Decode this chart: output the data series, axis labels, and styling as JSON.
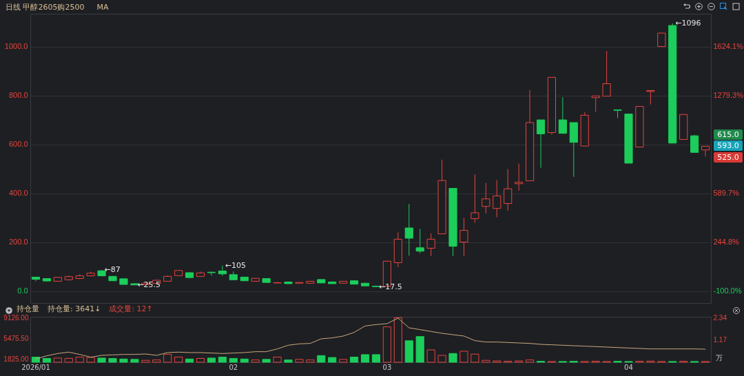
{
  "chart_data": [
    {
      "type": "candlestick",
      "title": "日线 甲醇2605购2500",
      "subtitle": "MA",
      "categories": [
        null,
        null,
        null,
        null,
        null,
        null,
        null,
        null,
        null,
        null,
        null,
        null,
        null,
        null,
        null,
        null,
        null,
        null,
        null,
        null,
        null,
        null,
        null,
        null,
        null,
        null,
        null,
        null,
        null,
        null,
        null,
        null,
        null,
        null,
        null,
        null,
        null,
        null,
        null,
        null,
        null,
        null,
        null,
        null,
        null,
        null,
        null,
        null,
        null,
        null,
        null,
        null,
        null,
        null,
        null,
        null,
        null,
        null,
        null,
        null,
        null,
        null
      ],
      "ohlc": [
        [
          58,
          59,
          41,
          49
        ],
        [
          52,
          53,
          40,
          42
        ],
        [
          41,
          58,
          40,
          57
        ],
        [
          47,
          64,
          45,
          60
        ],
        [
          52,
          70,
          50,
          63
        ],
        [
          63,
          80,
          61,
          74
        ],
        [
          84,
          87,
          62,
          63
        ],
        [
          61,
          62,
          42,
          43
        ],
        [
          51,
          52,
          28,
          28
        ],
        [
          31,
          32,
          25.5,
          26
        ],
        [
          27,
          34,
          26,
          33
        ],
        [
          32,
          46,
          31,
          45
        ],
        [
          41,
          65,
          40,
          61
        ],
        [
          64,
          86,
          63,
          85
        ],
        [
          76,
          77,
          53,
          56
        ],
        [
          61,
          81,
          59,
          75
        ],
        [
          78,
          80,
          64,
          76
        ],
        [
          83,
          105,
          63,
          71
        ],
        [
          68,
          81,
          46,
          47
        ],
        [
          58,
          59,
          42,
          43
        ],
        [
          41,
          54,
          40,
          53
        ],
        [
          52,
          53,
          35,
          36
        ],
        [
          34,
          38,
          32,
          35
        ],
        [
          38,
          40,
          30,
          31
        ],
        [
          33,
          37,
          32,
          36
        ],
        [
          33,
          42,
          32,
          41
        ],
        [
          48,
          49,
          33,
          34
        ],
        [
          38,
          41,
          30,
          31
        ],
        [
          33,
          42,
          32,
          41
        ],
        [
          43,
          45,
          28,
          29
        ],
        [
          33,
          35,
          21,
          22
        ],
        [
          21,
          22,
          17.5,
          19
        ],
        [
          20,
          125,
          19,
          123
        ],
        [
          117,
          241,
          99,
          213
        ],
        [
          259,
          357,
          146,
          217
        ],
        [
          178,
          255,
          156,
          164
        ],
        [
          176,
          237,
          144,
          213
        ],
        [
          235,
          538,
          235,
          453
        ],
        [
          421,
          421,
          144,
          184
        ],
        [
          201,
          300,
          144,
          249
        ],
        [
          297,
          478,
          280,
          321
        ],
        [
          347,
          443,
          318,
          378
        ],
        [
          339,
          455,
          303,
          390
        ],
        [
          359,
          500,
          330,
          419
        ],
        [
          440,
          522,
          411,
          446
        ],
        [
          452,
          823,
          452,
          690
        ],
        [
          701,
          701,
          505,
          644
        ],
        [
          649,
          875,
          641,
          875
        ],
        [
          701,
          794,
          646,
          646
        ],
        [
          690,
          690,
          468,
          609
        ],
        [
          594,
          732,
          594,
          720
        ],
        [
          792,
          799,
          734,
          799
        ],
        [
          798,
          982,
          798,
          849
        ],
        [
          742,
          743,
          708,
          740
        ],
        [
          725,
          725,
          524,
          524
        ],
        [
          590,
          756,
          590,
          756
        ],
        [
          817,
          821,
          764,
          821
        ],
        [
          1001,
          1056,
          1001,
          1056
        ],
        [
          1087,
          1096,
          606,
          606
        ],
        [
          621,
          723,
          621,
          723
        ],
        [
          636,
          640,
          568,
          568
        ],
        [
          578,
          593,
          552,
          593
        ]
      ],
      "colors": [
        "#1ccd5b",
        "#1ccd5b",
        "#e5453e",
        "#e5453e",
        "#e5453e",
        "#e5453e",
        "#1ccd5b",
        "#1ccd5b",
        "#1ccd5b",
        "#1ccd5b",
        "#e5453e",
        "#e5453e",
        "#e5453e",
        "#e5453e",
        "#1ccd5b",
        "#e5453e",
        "#1ccd5b",
        "#1ccd5b",
        "#1ccd5b",
        "#1ccd5b",
        "#e5453e",
        "#1ccd5b",
        "#e5453e",
        "#1ccd5b",
        "#e5453e",
        "#e5453e",
        "#1ccd5b",
        "#1ccd5b",
        "#e5453e",
        "#1ccd5b",
        "#1ccd5b",
        "#1ccd5b",
        "#e5453e",
        "#e5453e",
        "#1ccd5b",
        "#1ccd5b",
        "#e5453e",
        "#e5453e",
        "#1ccd5b",
        "#e5453e",
        "#e5453e",
        "#e5453e",
        "#e5453e",
        "#e5453e",
        "#e5453e",
        "#e5453e",
        "#1ccd5b",
        "#e5453e",
        "#1ccd5b",
        "#1ccd5b",
        "#e5453e",
        "#e5453e",
        "#e5453e",
        "#1ccd5b",
        "#1ccd5b",
        "#e5453e",
        "#e5453e",
        "#e5453e",
        "#1ccd5b",
        "#e5453e",
        "#1ccd5b",
        "#e5453e"
      ],
      "ylim": [
        -48,
        1135
      ],
      "yticks": [
        {
          "value": 0,
          "label": "0.0"
        },
        {
          "value": 200,
          "label": "200.0"
        },
        {
          "value": 400,
          "label": "400.0"
        },
        {
          "value": 600,
          "label": "600.0"
        },
        {
          "value": 800,
          "label": "800.0"
        },
        {
          "value": 1000,
          "label": "1000.0"
        }
      ],
      "y2lim": [
        -182.8,
        1856.9
      ],
      "y2ticks": [
        {
          "value": -100,
          "label": "-100.0%"
        },
        {
          "value": 244.8,
          "label": "244.8%"
        },
        {
          "value": 589.7,
          "label": "589.7%"
        },
        {
          "value": 1279.3,
          "label": "1279.3%"
        },
        {
          "value": 1624.1,
          "label": "1624.1%"
        }
      ],
      "grid": "y",
      "annotations": [
        "←87",
        "←25.5",
        "←105",
        "←17.5",
        "←1096",
        "615.0",
        "593.0",
        "525.0"
      ]
    },
    {
      "type": "bar",
      "title": "持仓量",
      "categories": [
        "2026/01",
        null,
        null,
        null,
        null,
        null,
        null,
        null,
        null,
        null,
        null,
        null,
        null,
        null,
        null,
        null,
        null,
        null,
        "02",
        null,
        null,
        null,
        null,
        null,
        null,
        null,
        null,
        null,
        null,
        null,
        null,
        null,
        "03",
        null,
        null,
        null,
        null,
        null,
        null,
        null,
        null,
        null,
        null,
        null,
        null,
        null,
        null,
        null,
        null,
        null,
        null,
        null,
        null,
        null,
        "04",
        null,
        null,
        null,
        null,
        null,
        null,
        null
      ],
      "series": [
        {
          "type": "bar",
          "axis": "y2",
          "values": [
            0.27,
            0.2,
            0.22,
            0.2,
            0.27,
            0.25,
            0.22,
            0.2,
            0.17,
            0.15,
            0.1,
            0.12,
            0.42,
            0.27,
            0.17,
            0.2,
            0.22,
            0.27,
            0.2,
            0.17,
            0.12,
            0.15,
            0.27,
            0.12,
            0.15,
            0.12,
            0.35,
            0.25,
            0.15,
            0.27,
            0.4,
            0.4,
            1.86,
            2.34,
            1.13,
            1.35,
            0.65,
            0.36,
            0.46,
            0.58,
            0.43,
            0.1,
            0.07,
            0.05,
            0.07,
            0.12,
            0.05,
            0.04,
            0.04,
            0.05,
            0.04,
            0.05,
            0.04,
            0.05,
            0.04,
            0.05,
            0.06,
            0.04,
            0.04,
            0.05,
            0.04,
            0.04
          ],
          "colors": [
            "#1ccd5b",
            "#1ccd5b",
            "#e5453e",
            "#e5453e",
            "#e5453e",
            "#e5453e",
            "#1ccd5b",
            "#1ccd5b",
            "#1ccd5b",
            "#1ccd5b",
            "#e5453e",
            "#e5453e",
            "#e5453e",
            "#e5453e",
            "#1ccd5b",
            "#e5453e",
            "#1ccd5b",
            "#1ccd5b",
            "#1ccd5b",
            "#1ccd5b",
            "#e5453e",
            "#1ccd5b",
            "#e5453e",
            "#1ccd5b",
            "#e5453e",
            "#e5453e",
            "#1ccd5b",
            "#1ccd5b",
            "#e5453e",
            "#1ccd5b",
            "#1ccd5b",
            "#1ccd5b",
            "#e5453e",
            "#e5453e",
            "#1ccd5b",
            "#1ccd5b",
            "#e5453e",
            "#e5453e",
            "#1ccd5b",
            "#e5453e",
            "#e5453e",
            "#e5453e",
            "#e5453e",
            "#e5453e",
            "#e5453e",
            "#e5453e",
            "#1ccd5b",
            "#e5453e",
            "#1ccd5b",
            "#1ccd5b",
            "#e5453e",
            "#e5453e",
            "#e5453e",
            "#1ccd5b",
            "#1ccd5b",
            "#e5453e",
            "#e5453e",
            "#e5453e",
            "#1ccd5b",
            "#e5453e",
            "#1ccd5b",
            "#e5453e"
          ]
        },
        {
          "type": "line",
          "color": "#c9a97c",
          "values": [
            1906,
            2474,
            2879,
            3123,
            2717,
            2231,
            2555,
            2636,
            2717,
            2717,
            2798,
            2555,
            3042,
            3123,
            3042,
            3042,
            2960,
            2879,
            2960,
            3042,
            3204,
            3204,
            3690,
            4339,
            4582,
            4664,
            5475,
            5637,
            5961,
            6610,
            7745,
            7989,
            8151,
            9126,
            7421,
            7097,
            6772,
            6448,
            6204,
            5961,
            5150,
            4907,
            4907,
            4826,
            4745,
            4664,
            4501,
            4420,
            4339,
            4258,
            4177,
            4096,
            4015,
            3934,
            3853,
            3772,
            3690,
            3690,
            3690,
            3690,
            3690,
            3641
          ]
        }
      ],
      "ylim": [
        1338,
        9367
      ],
      "yticks": [
        {
          "value": 1825,
          "label": "1825.00"
        },
        {
          "value": 5475.5,
          "label": "5475.50"
        },
        {
          "value": 9126,
          "label": "9126.00"
        }
      ],
      "y2lim": [
        0,
        2.39
      ],
      "y2ticks": [
        1.17,
        2.34
      ],
      "y2label": "万",
      "annotations": [
        "持仓量: 3641↓",
        "成交量: 12↑"
      ]
    }
  ]
}
